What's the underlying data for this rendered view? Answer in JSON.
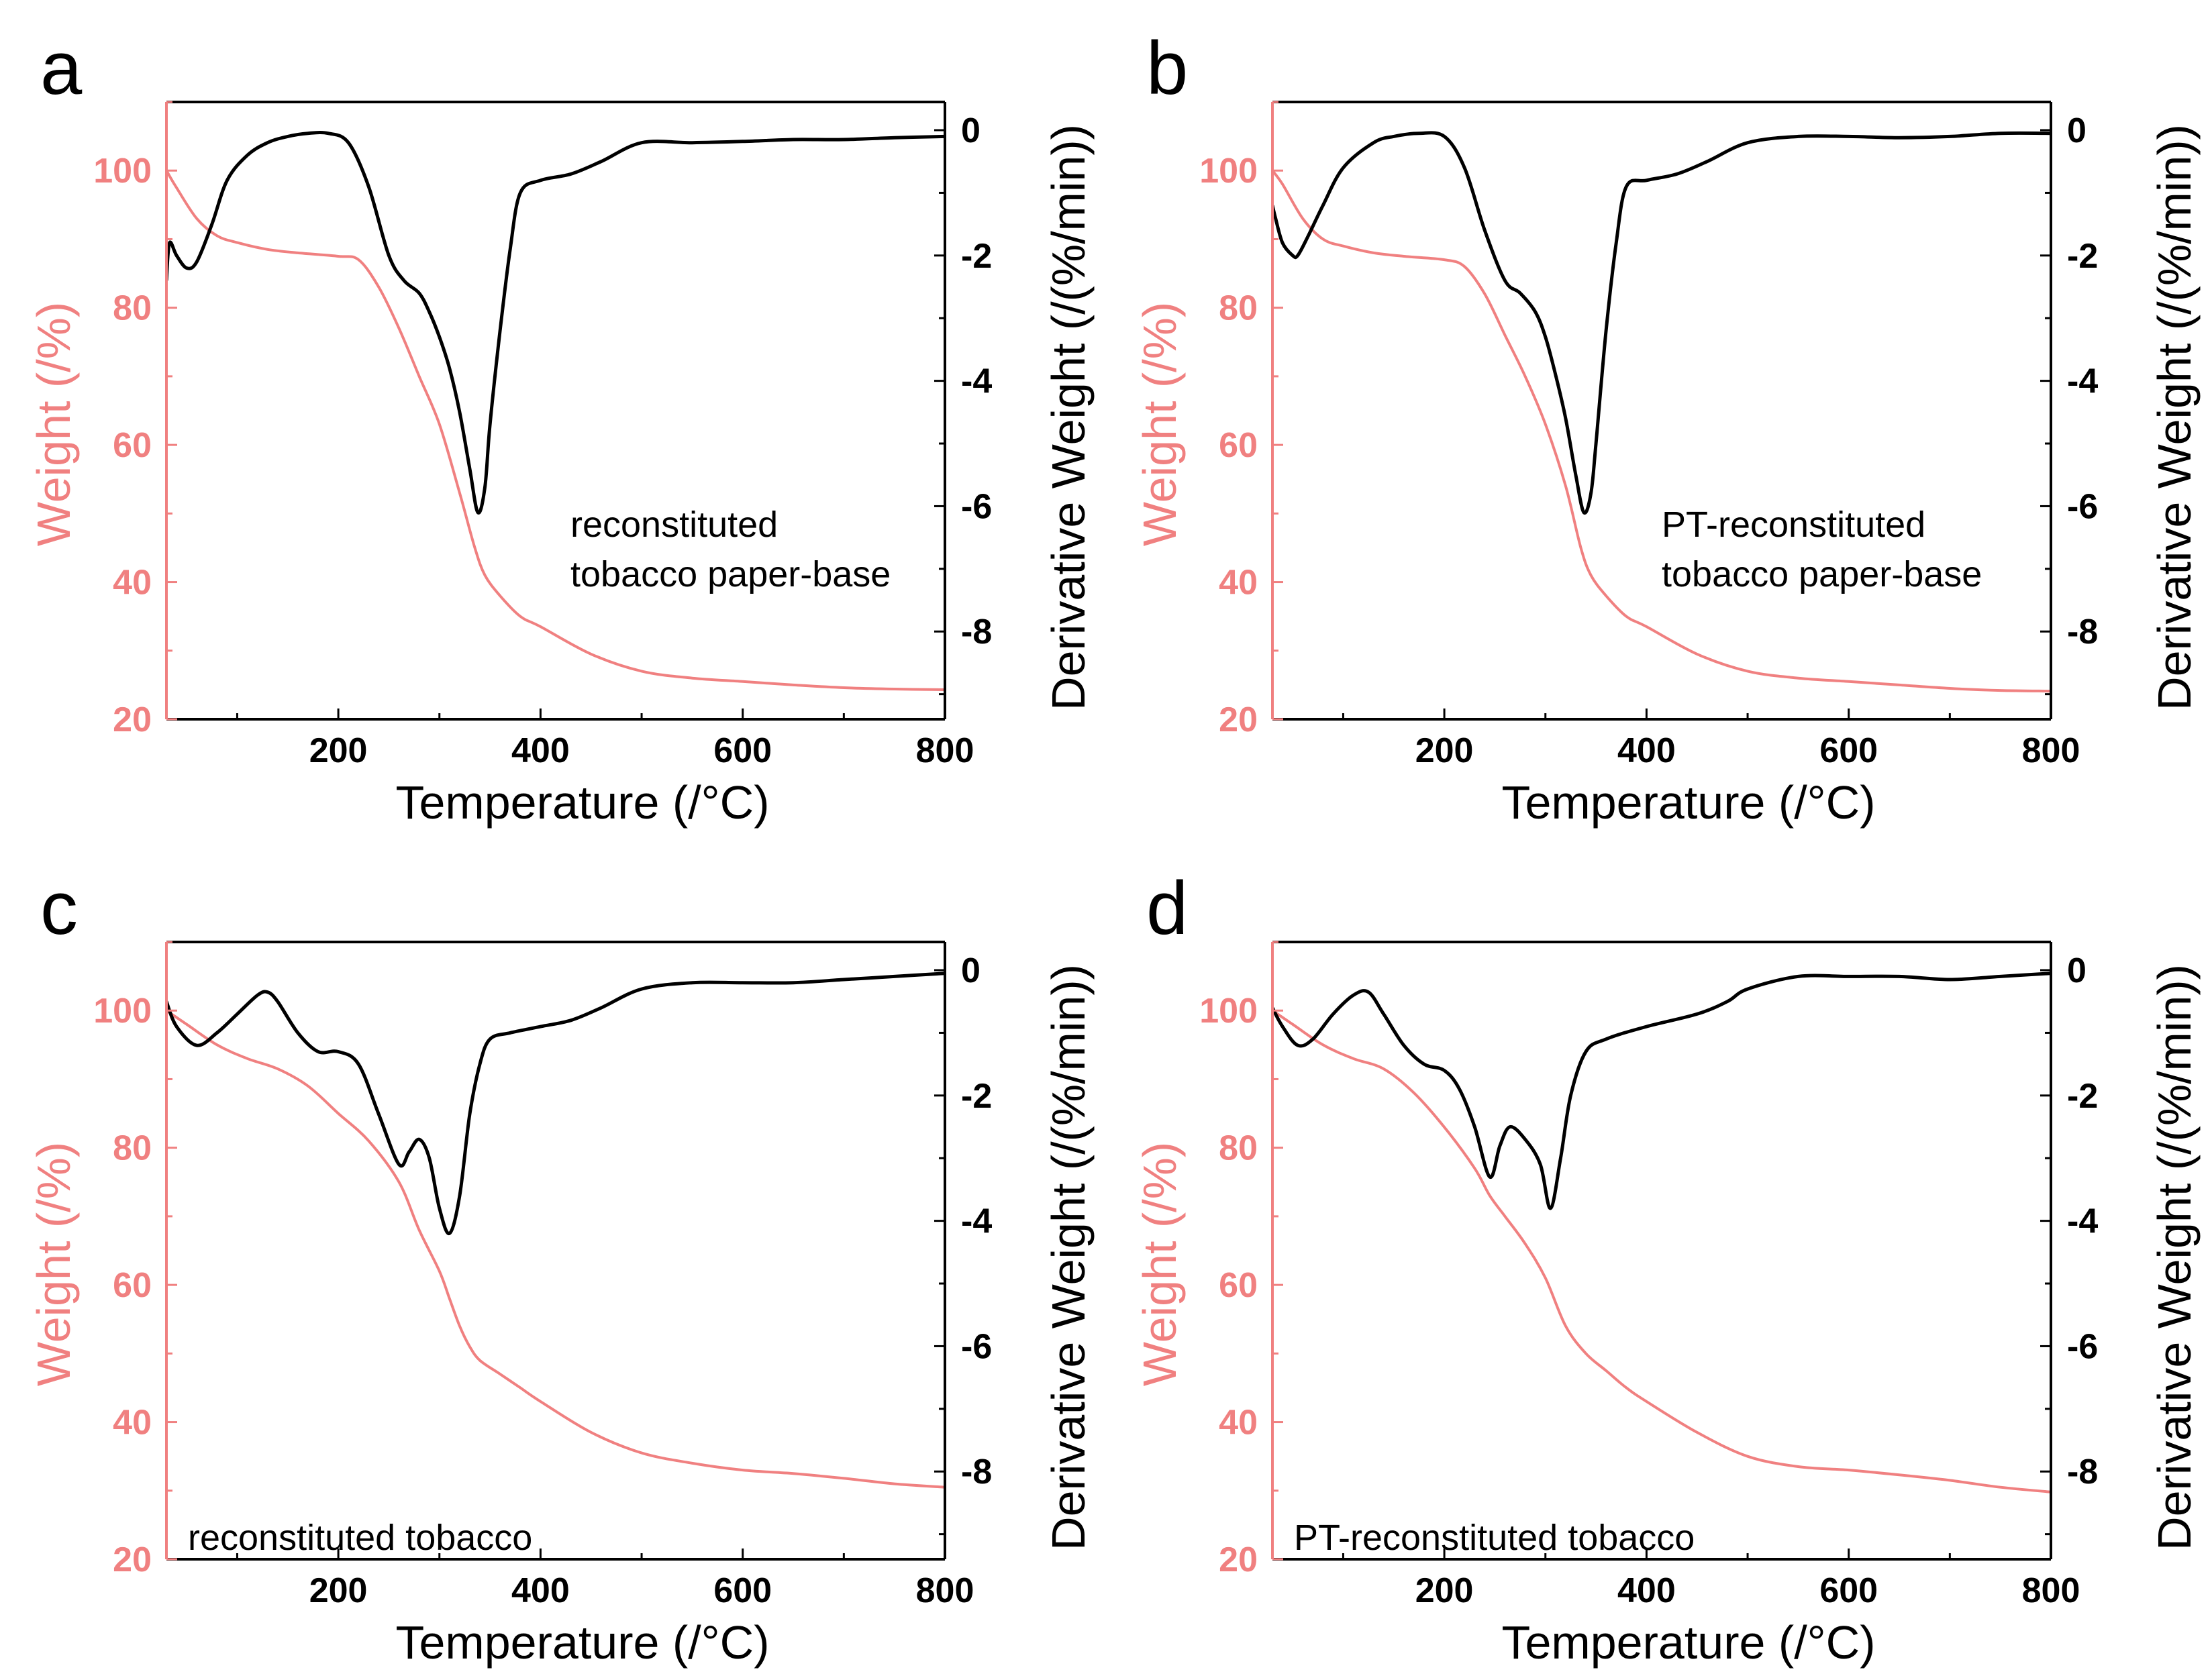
{
  "colors": {
    "weight": "#f08080",
    "derivative": "#000000",
    "frame": "#000000"
  },
  "chart_data": [
    {
      "type": "line",
      "panel": "a",
      "annotation": [
        "reconstituted",
        "tobacco paper-base"
      ],
      "xlabel": "Temperature (/°C)",
      "ylabel": "Weight (/%)",
      "y2label": "Derivative  Weight (/(%/min))",
      "xlim": [
        30,
        800
      ],
      "ylim": [
        20,
        110
      ],
      "y2lim": [
        -9.4,
        0.45
      ],
      "xticks": [
        200,
        400,
        600,
        800
      ],
      "yticks": [
        20,
        40,
        60,
        80,
        100
      ],
      "y2ticks": [
        0,
        -2,
        -4,
        -6,
        -8
      ],
      "series": [
        {
          "name": "Weight",
          "axis": "left",
          "x": [
            30,
            40,
            60,
            80,
            100,
            130,
            160,
            200,
            220,
            240,
            260,
            280,
            300,
            320,
            335,
            345,
            360,
            380,
            400,
            450,
            500,
            550,
            600,
            650,
            700,
            750,
            800
          ],
          "y": [
            100,
            97.5,
            93,
            90.5,
            89.5,
            88.5,
            88,
            87.5,
            87,
            83,
            77,
            70,
            63,
            53,
            45,
            41,
            38,
            35,
            33.5,
            29.5,
            27,
            26,
            25.5,
            25,
            24.6,
            24.4,
            24.3
          ]
        },
        {
          "name": "Derivative Weight",
          "axis": "right",
          "x": [
            30,
            33,
            40,
            50,
            60,
            75,
            90,
            110,
            130,
            150,
            170,
            190,
            210,
            230,
            250,
            265,
            280,
            290,
            300,
            310,
            320,
            330,
            338,
            345,
            350,
            360,
            370,
            380,
            400,
            430,
            460,
            500,
            550,
            600,
            650,
            700,
            750,
            800
          ],
          "y": [
            -2.4,
            -1.8,
            -2.0,
            -2.2,
            -2.1,
            -1.5,
            -0.8,
            -0.4,
            -0.2,
            -0.1,
            -0.05,
            -0.05,
            -0.2,
            -0.9,
            -2.0,
            -2.4,
            -2.6,
            -2.9,
            -3.3,
            -3.8,
            -4.5,
            -5.4,
            -6.1,
            -5.7,
            -4.7,
            -3.2,
            -1.9,
            -1.0,
            -0.8,
            -0.7,
            -0.5,
            -0.2,
            -0.2,
            -0.18,
            -0.15,
            -0.15,
            -0.12,
            -0.1
          ]
        }
      ]
    },
    {
      "type": "line",
      "panel": "b",
      "annotation": [
        "PT-reconstituted",
        "tobacco paper-base"
      ],
      "xlabel": "Temperature (/°C)",
      "ylabel": "Weight (/%)",
      "y2label": "Derivative  Weight (/(%/min))",
      "xlim": [
        30,
        800
      ],
      "ylim": [
        20,
        110
      ],
      "y2lim": [
        -9.4,
        0.45
      ],
      "xticks": [
        200,
        400,
        600,
        800
      ],
      "yticks": [
        20,
        40,
        60,
        80,
        100
      ],
      "y2ticks": [
        0,
        -2,
        -4,
        -6,
        -8
      ],
      "series": [
        {
          "name": "Weight",
          "axis": "left",
          "x": [
            30,
            40,
            60,
            80,
            100,
            130,
            160,
            200,
            220,
            240,
            260,
            280,
            300,
            320,
            335,
            345,
            360,
            380,
            400,
            450,
            500,
            550,
            600,
            650,
            700,
            750,
            800
          ],
          "y": [
            100,
            98,
            93,
            90,
            89,
            88,
            87.5,
            87,
            86,
            82,
            76,
            70,
            63,
            54,
            45,
            41,
            38,
            35,
            33.5,
            29.5,
            27,
            26,
            25.5,
            25,
            24.5,
            24.2,
            24.1
          ]
        },
        {
          "name": "Derivative Weight",
          "axis": "right",
          "x": [
            30,
            33,
            40,
            50,
            55,
            65,
            80,
            100,
            130,
            150,
            175,
            200,
            220,
            240,
            260,
            275,
            290,
            300,
            310,
            320,
            330,
            338,
            345,
            350,
            360,
            370,
            380,
            400,
            430,
            460,
            500,
            550,
            600,
            650,
            700,
            750,
            800
          ],
          "y": [
            -1.2,
            -1.4,
            -1.8,
            -2.0,
            -2.0,
            -1.7,
            -1.2,
            -0.6,
            -0.2,
            -0.1,
            -0.05,
            -0.1,
            -0.6,
            -1.6,
            -2.4,
            -2.6,
            -2.9,
            -3.3,
            -3.9,
            -4.6,
            -5.5,
            -6.1,
            -5.8,
            -5.0,
            -3.2,
            -1.8,
            -0.9,
            -0.8,
            -0.7,
            -0.5,
            -0.2,
            -0.1,
            -0.1,
            -0.12,
            -0.1,
            -0.05,
            -0.05
          ]
        }
      ]
    },
    {
      "type": "line",
      "panel": "c",
      "annotation": [
        "reconstituted tobacco"
      ],
      "xlabel": "Temperature (/°C)",
      "ylabel": "Weight (/%)",
      "y2label": "Derivative  Weight (/(%/min))",
      "xlim": [
        30,
        800
      ],
      "ylim": [
        20,
        110
      ],
      "y2lim": [
        -9.4,
        0.45
      ],
      "xticks": [
        200,
        400,
        600,
        800
      ],
      "yticks": [
        20,
        40,
        60,
        80,
        100
      ],
      "y2ticks": [
        0,
        -2,
        -4,
        -6,
        -8
      ],
      "series": [
        {
          "name": "Weight",
          "axis": "left",
          "x": [
            30,
            50,
            80,
            110,
            140,
            170,
            200,
            230,
            260,
            280,
            300,
            310,
            320,
            330,
            340,
            360,
            380,
            400,
            450,
            500,
            550,
            600,
            650,
            700,
            750,
            800
          ],
          "y": [
            100,
            98,
            95,
            93,
            91.5,
            89,
            85,
            81,
            75,
            68,
            62,
            58,
            54,
            51,
            49,
            47,
            45,
            43,
            38.5,
            35.5,
            34,
            33,
            32.5,
            31.8,
            31,
            30.5
          ]
        },
        {
          "name": "Derivative Weight",
          "axis": "right",
          "x": [
            30,
            40,
            60,
            80,
            100,
            120,
            130,
            140,
            160,
            180,
            200,
            220,
            240,
            260,
            270,
            280,
            290,
            300,
            310,
            320,
            330,
            340,
            350,
            370,
            400,
            430,
            460,
            500,
            550,
            600,
            650,
            700,
            750,
            800
          ],
          "y": [
            -0.5,
            -0.9,
            -1.2,
            -1.0,
            -0.7,
            -0.4,
            -0.35,
            -0.5,
            -1.0,
            -1.3,
            -1.3,
            -1.5,
            -2.3,
            -3.1,
            -2.9,
            -2.7,
            -3.0,
            -3.8,
            -4.2,
            -3.6,
            -2.3,
            -1.5,
            -1.1,
            -1.0,
            -0.9,
            -0.8,
            -0.6,
            -0.3,
            -0.2,
            -0.2,
            -0.2,
            -0.15,
            -0.1,
            -0.05
          ]
        }
      ]
    },
    {
      "type": "line",
      "panel": "d",
      "annotation": [
        "PT-reconstituted tobacco"
      ],
      "xlabel": "Temperature (/°C)",
      "ylabel": "Weight (/%)",
      "y2label": "Derivative  Weight (/(%/min))",
      "xlim": [
        30,
        800
      ],
      "ylim": [
        20,
        110
      ],
      "y2lim": [
        -9.4,
        0.45
      ],
      "xticks": [
        200,
        400,
        600,
        800
      ],
      "yticks": [
        20,
        40,
        60,
        80,
        100
      ],
      "y2ticks": [
        0,
        -2,
        -4,
        -6,
        -8
      ],
      "series": [
        {
          "name": "Weight",
          "axis": "left",
          "x": [
            30,
            50,
            80,
            110,
            140,
            170,
            200,
            230,
            245,
            260,
            280,
            300,
            320,
            340,
            360,
            380,
            400,
            450,
            500,
            550,
            600,
            650,
            700,
            750,
            800
          ],
          "y": [
            100,
            98,
            95,
            93,
            91.5,
            88,
            83,
            77,
            73,
            70,
            66,
            61,
            54,
            50,
            47.5,
            45,
            43,
            38.5,
            35,
            33.5,
            33,
            32.3,
            31.5,
            30.5,
            29.8
          ]
        },
        {
          "name": "Derivative Weight",
          "axis": "right",
          "x": [
            30,
            40,
            55,
            70,
            90,
            110,
            125,
            140,
            160,
            180,
            200,
            215,
            230,
            245,
            255,
            265,
            280,
            295,
            305,
            315,
            325,
            340,
            360,
            400,
            450,
            480,
            500,
            550,
            600,
            650,
            700,
            750,
            800
          ],
          "y": [
            -0.6,
            -0.9,
            -1.2,
            -1.1,
            -0.7,
            -0.4,
            -0.35,
            -0.7,
            -1.2,
            -1.5,
            -1.6,
            -1.9,
            -2.5,
            -3.3,
            -2.8,
            -2.5,
            -2.7,
            -3.1,
            -3.8,
            -3.0,
            -2.0,
            -1.3,
            -1.1,
            -0.9,
            -0.7,
            -0.5,
            -0.3,
            -0.1,
            -0.1,
            -0.1,
            -0.15,
            -0.1,
            -0.05
          ]
        }
      ]
    }
  ]
}
